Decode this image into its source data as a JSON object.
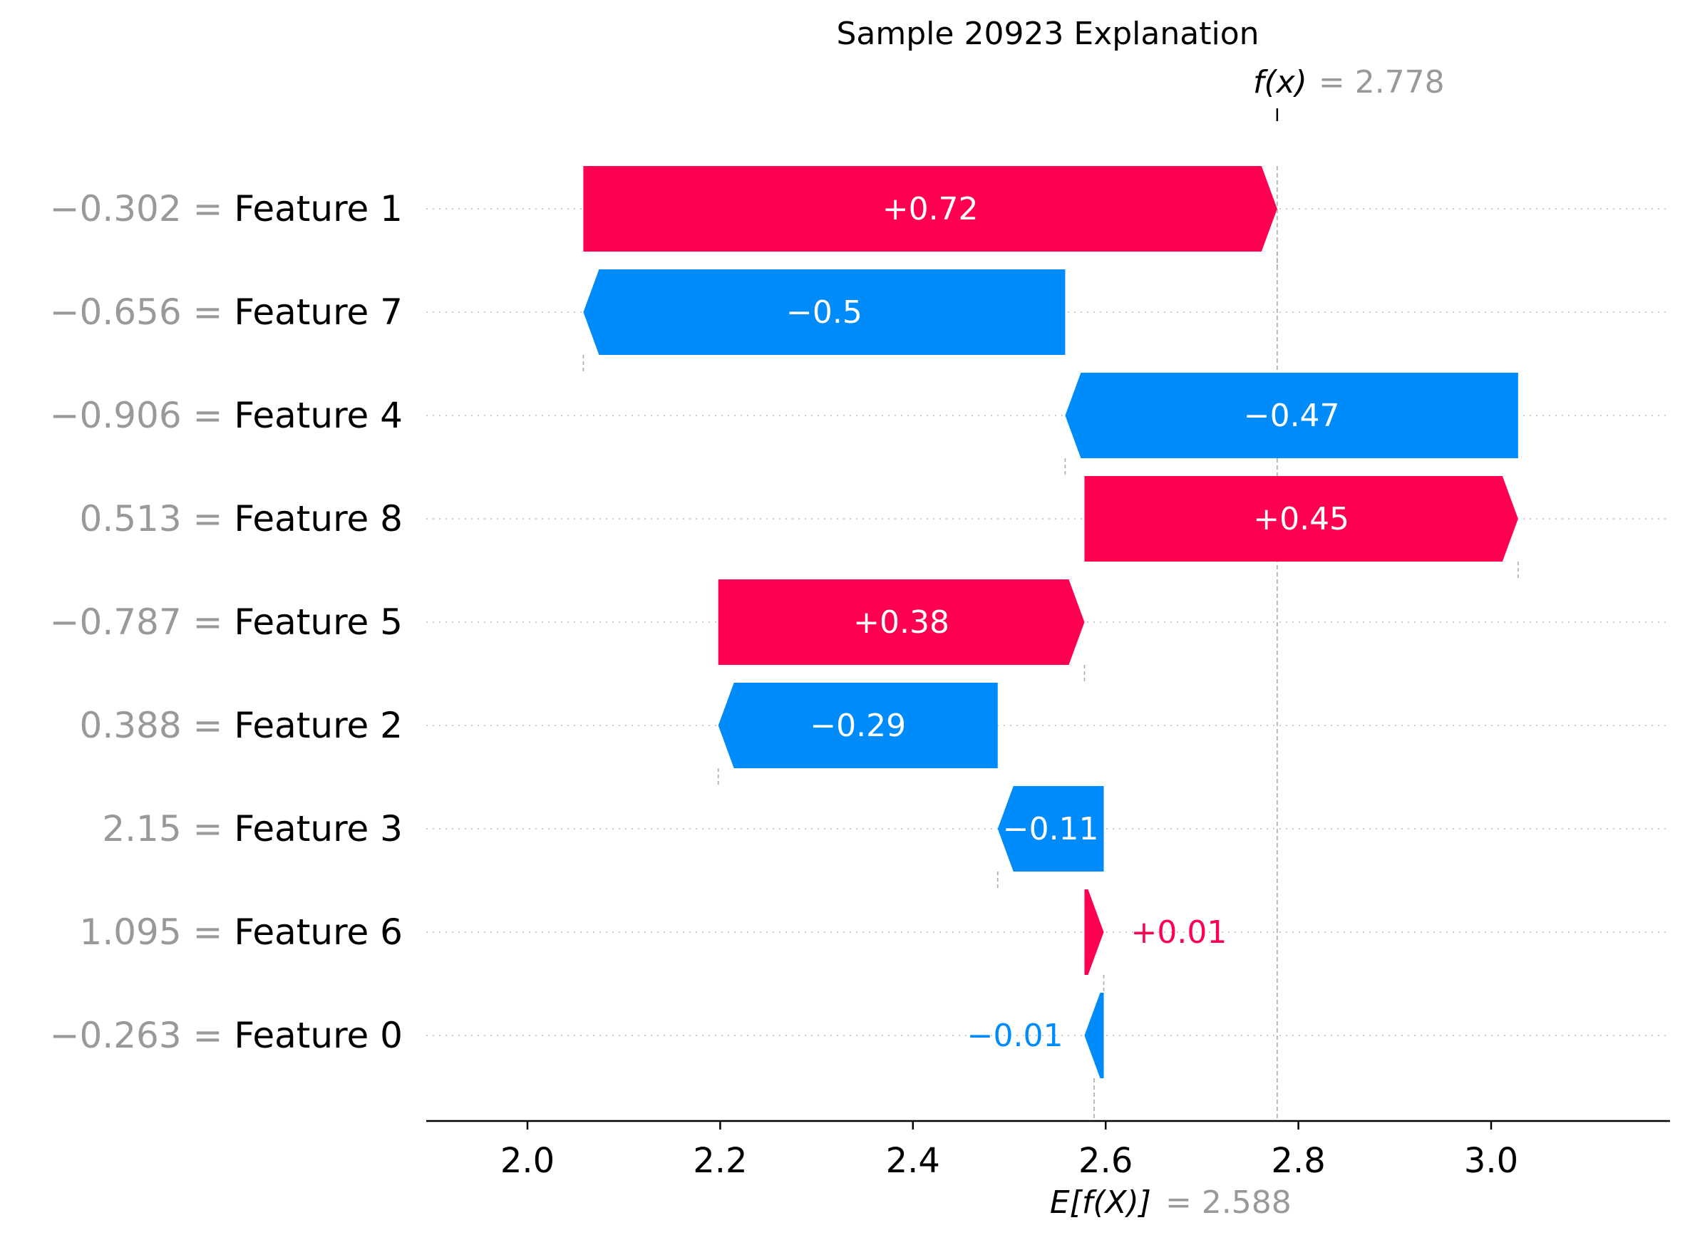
{
  "chart_data": {
    "type": "waterfall",
    "title": "Sample 20923 Explanation",
    "fx_label": "f(x)",
    "fx_value_text": "= 2.778",
    "fx_value": 2.778,
    "ex_label": "E[f(X)]",
    "ex_value_text": "= 2.588",
    "ex_value": 2.588,
    "xlim": [
      1.89,
      3.18
    ],
    "x_ticks": [
      2.0,
      2.2,
      2.4,
      2.6,
      2.8,
      3.0
    ],
    "x_tick_labels": [
      "2.0",
      "2.2",
      "2.4",
      "2.6",
      "2.8",
      "3.0"
    ],
    "positive_color": "#ff0051",
    "negative_color": "#008bfb",
    "features": [
      {
        "value_text": "−0.302 =",
        "name": "Feature 1",
        "contribution": 0.72,
        "label": "+0.72",
        "start": 2.058,
        "end": 2.778
      },
      {
        "value_text": "−0.656 =",
        "name": "Feature 7",
        "contribution": -0.5,
        "label": "−0.5",
        "start": 2.558,
        "end": 2.058
      },
      {
        "value_text": "−0.906 =",
        "name": "Feature 4",
        "contribution": -0.47,
        "label": "−0.47",
        "start": 3.028,
        "end": 2.558
      },
      {
        "value_text": "0.513 =",
        "name": "Feature 8",
        "contribution": 0.45,
        "label": "+0.45",
        "start": 2.578,
        "end": 3.028
      },
      {
        "value_text": "−0.787 =",
        "name": "Feature 5",
        "contribution": 0.38,
        "label": "+0.38",
        "start": 2.198,
        "end": 2.578
      },
      {
        "value_text": "0.388 =",
        "name": "Feature 2",
        "contribution": -0.29,
        "label": "−0.29",
        "start": 2.488,
        "end": 2.198
      },
      {
        "value_text": "2.15 =",
        "name": "Feature 3",
        "contribution": -0.11,
        "label": "−0.11",
        "start": 2.598,
        "end": 2.488
      },
      {
        "value_text": "1.095 =",
        "name": "Feature 6",
        "contribution": 0.01,
        "label": "+0.01",
        "start": 2.578,
        "end": 2.598
      },
      {
        "value_text": "−0.263 =",
        "name": "Feature 0",
        "contribution": -0.01,
        "label": "−0.01",
        "start": 2.598,
        "end": 2.578
      }
    ]
  }
}
